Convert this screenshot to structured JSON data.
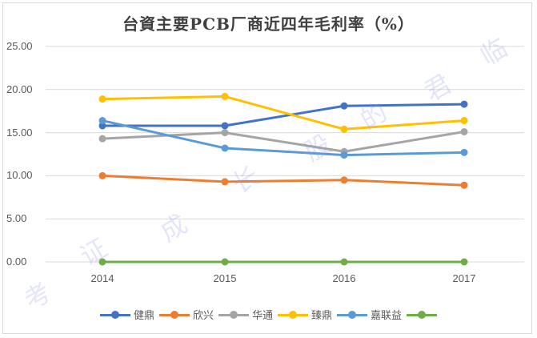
{
  "chart_data": {
    "type": "line",
    "title": "台資主要PCB厂商近四年毛利率（%）",
    "xlabel": "",
    "ylabel": "",
    "categories": [
      "2014",
      "2015",
      "2016",
      "2017"
    ],
    "ylim": [
      0,
      25
    ],
    "yticks": [
      "0.00",
      "5.00",
      "10.00",
      "15.00",
      "20.00",
      "25.00"
    ],
    "grid": true,
    "legend_position": "bottom",
    "series": [
      {
        "name": "健鼎",
        "color": "#4472C4",
        "values": [
          15.8,
          15.8,
          18.1,
          18.3
        ]
      },
      {
        "name": "欣兴",
        "color": "#ED7D31",
        "values": [
          10.0,
          9.3,
          9.5,
          8.9
        ]
      },
      {
        "name": "华通",
        "color": "#A5A5A5",
        "values": [
          14.3,
          15.0,
          12.8,
          15.1
        ]
      },
      {
        "name": "臻鼎",
        "color": "#FFC000",
        "values": [
          18.9,
          19.2,
          15.4,
          16.4
        ]
      },
      {
        "name": "嘉联益",
        "color": "#5B9BD5",
        "values": [
          16.4,
          13.2,
          12.4,
          12.7
        ]
      },
      {
        "name": "",
        "color": "#70AD47",
        "values": [
          0,
          0,
          0,
          0
        ]
      }
    ]
  },
  "watermark": [
    "考",
    "证",
    "成",
    "长",
    "股",
    "的",
    "君",
    "临"
  ]
}
